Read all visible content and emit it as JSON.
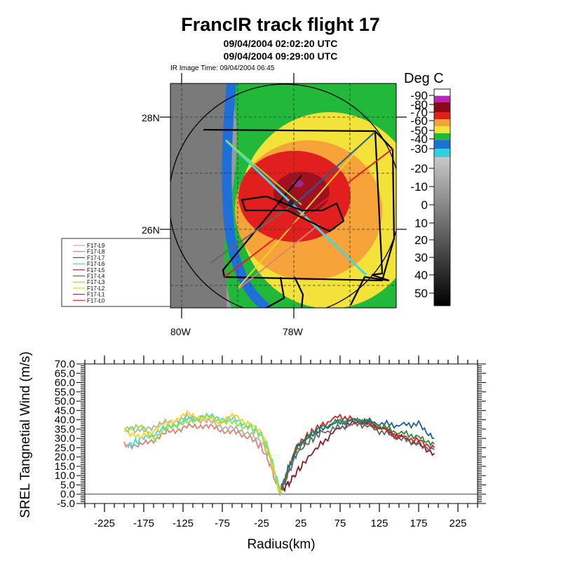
{
  "header": {
    "title": "FrancIR track flight 17",
    "subtitle1": "09/04/2004 02:02:20 UTC",
    "subtitle2": "09/04/2004 09:29:00 UTC",
    "image_time": "IR Image Time: 09/04/2004 06:45"
  },
  "colors": {
    "warm_gray": "#9a9a9a",
    "blue": "#1f6fd8",
    "green": "#22b83a",
    "yellow": "#f3e23a",
    "orange": "#f6a43a",
    "red": "#e21f1f",
    "darkred": "#8b1a2a",
    "purple": "#a02a8a"
  },
  "map": {
    "lat_labels": [
      "28N",
      "26N"
    ],
    "lon_labels": [
      "80W",
      "78W"
    ],
    "colorbar_title": "Deg C",
    "colorbar_labels": [
      "-90",
      "-80",
      "-70",
      "-60",
      "-50",
      "-40",
      "-30",
      "-20",
      "-10",
      "0",
      "10",
      "20",
      "30",
      "40",
      "50"
    ],
    "legend": [
      "F17-L9",
      "F17-L8",
      "F17-L7",
      "F17-L6",
      "F17-L5",
      "F17-L4",
      "F17-L3",
      "F17-L2",
      "F17-L1",
      "F17-L0"
    ]
  },
  "chart_data": {
    "type": "line",
    "title": "",
    "xlabel": "Radius(km)",
    "ylabel": "SREL Tangnetial Wind (m/s)",
    "xlim": [
      -250,
      250
    ],
    "ylim": [
      -5,
      70
    ],
    "xticks": [
      -225,
      -175,
      -125,
      -75,
      -25,
      25,
      75,
      125,
      175,
      225
    ],
    "yticks": [
      -5.0,
      0.0,
      5.0,
      10.0,
      15.0,
      20.0,
      25.0,
      30.0,
      35.0,
      40.0,
      45.0,
      50.0,
      55.0,
      60.0,
      65.0,
      70.0
    ],
    "ytick_labels": [
      "-5.0",
      "0.0",
      "5.0",
      "10.0",
      "15.0",
      "20.0",
      "25.0",
      "30.0",
      "35.0",
      "40.0",
      "45.0",
      "50.0",
      "55.0",
      "60.0",
      "65.0",
      "70.0"
    ],
    "reference_line_y": 0,
    "series": [
      {
        "color": "#e08070",
        "x": [
          -200,
          -180,
          -160,
          -140,
          -120,
          -100,
          -80,
          -60,
          -40,
          -25,
          -15,
          -8,
          -3,
          0
        ],
        "y": [
          27,
          26,
          30,
          34,
          36,
          37,
          35,
          33,
          31,
          25,
          17,
          8,
          2,
          1
        ]
      },
      {
        "color": "#b0b0b0",
        "x": [
          -198,
          -180,
          -160,
          -140,
          -120,
          -100,
          -80,
          -60,
          -40,
          -25,
          -15,
          -8,
          -3,
          0
        ],
        "y": [
          36,
          34,
          37,
          39,
          41,
          40,
          37,
          35,
          33,
          28,
          20,
          10,
          3,
          1
        ]
      },
      {
        "color": "#3fd8e0",
        "x": [
          -195,
          -180,
          -160,
          -140,
          -120,
          -100,
          -80,
          -60,
          -40,
          -25,
          -15,
          -8,
          -3,
          0
        ],
        "y": [
          26,
          29,
          33,
          37,
          40,
          42,
          41,
          40,
          37,
          32,
          23,
          12,
          4,
          1
        ]
      },
      {
        "color": "#ffd020",
        "x": [
          -200,
          -180,
          -160,
          -140,
          -120,
          -100,
          -80,
          -60,
          -40,
          -25,
          -15,
          -8,
          -3,
          0
        ],
        "y": [
          35,
          30,
          35,
          39,
          43,
          41,
          39,
          42,
          38,
          33,
          22,
          10,
          3,
          1
        ]
      },
      {
        "color": "#90e040",
        "x": [
          -200,
          -180,
          -160,
          -140,
          -120,
          -100,
          -80,
          -60,
          -40,
          -25,
          -15,
          -8,
          -3,
          0
        ],
        "y": [
          35,
          36,
          30,
          37,
          38,
          42,
          40,
          38,
          36,
          31,
          22,
          11,
          3,
          1
        ]
      },
      {
        "color": "#8b1a2a",
        "x": [
          0,
          5,
          10,
          20,
          35,
          50,
          75,
          100,
          125,
          150,
          175,
          195
        ],
        "y": [
          2,
          4,
          6,
          12,
          20,
          27,
          36,
          39,
          36,
          31,
          27,
          22
        ]
      },
      {
        "color": "#e21f1f",
        "x": [
          0,
          5,
          10,
          20,
          35,
          50,
          75,
          100,
          125,
          150,
          175,
          195
        ],
        "y": [
          3,
          8,
          14,
          26,
          32,
          37,
          42,
          39,
          36,
          31,
          29,
          25
        ]
      },
      {
        "color": "#1f5fa0",
        "x": [
          0,
          5,
          10,
          20,
          35,
          50,
          75,
          100,
          125,
          150,
          175,
          195
        ],
        "y": [
          3,
          9,
          15,
          25,
          31,
          35,
          39,
          40,
          38,
          37,
          38,
          30
        ]
      },
      {
        "color": "#2a8a3a",
        "x": [
          0,
          5,
          10,
          20,
          35,
          50,
          75,
          100,
          125,
          150,
          175,
          195
        ],
        "y": [
          3,
          8,
          14,
          24,
          31,
          36,
          39,
          40,
          37,
          33,
          31,
          27
        ]
      },
      {
        "color": "#666666",
        "x": [
          0,
          5,
          10,
          20,
          35,
          50,
          75,
          100,
          125,
          150,
          175,
          195
        ],
        "y": [
          3,
          7,
          12,
          22,
          28,
          33,
          36,
          38,
          34,
          30,
          27,
          24
        ]
      }
    ]
  }
}
